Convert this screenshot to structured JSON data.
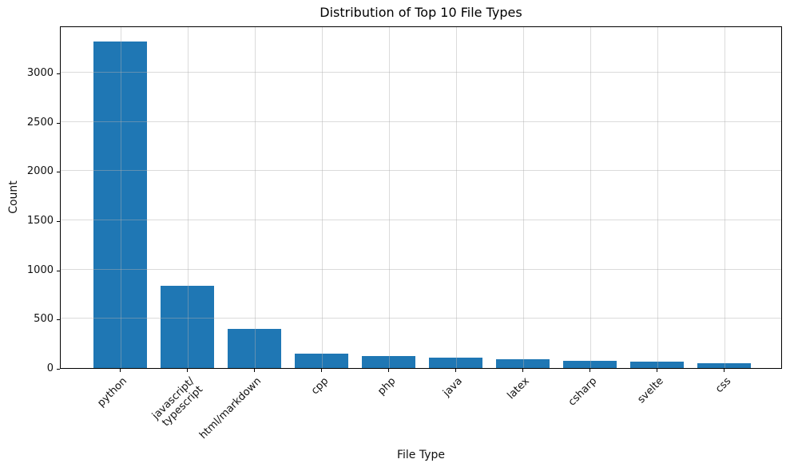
{
  "figure": {
    "background": "#ffffff",
    "text_color": "#111111",
    "spine_color": "#000000"
  },
  "chart_data": {
    "type": "bar",
    "title": "Distribution of Top 10 File Types",
    "xlabel": "File Type",
    "ylabel": "Count",
    "categories": [
      "python",
      "javascript/\ntypescript",
      "html/markdown",
      "cpp",
      "php",
      "java",
      "latex",
      "csharp",
      "svelte",
      "css"
    ],
    "values": [
      3320,
      835,
      400,
      148,
      120,
      108,
      92,
      75,
      66,
      50
    ],
    "ylim": [
      0,
      3480
    ],
    "yticks": [
      0,
      500,
      1000,
      1500,
      2000,
      2500,
      3000
    ],
    "grid": true,
    "grid_on_top": true,
    "bar_color": "#1f77b4",
    "grid_color": "#b0b0b0",
    "x_tick_rotation_deg": 45,
    "legend_position": "none"
  }
}
